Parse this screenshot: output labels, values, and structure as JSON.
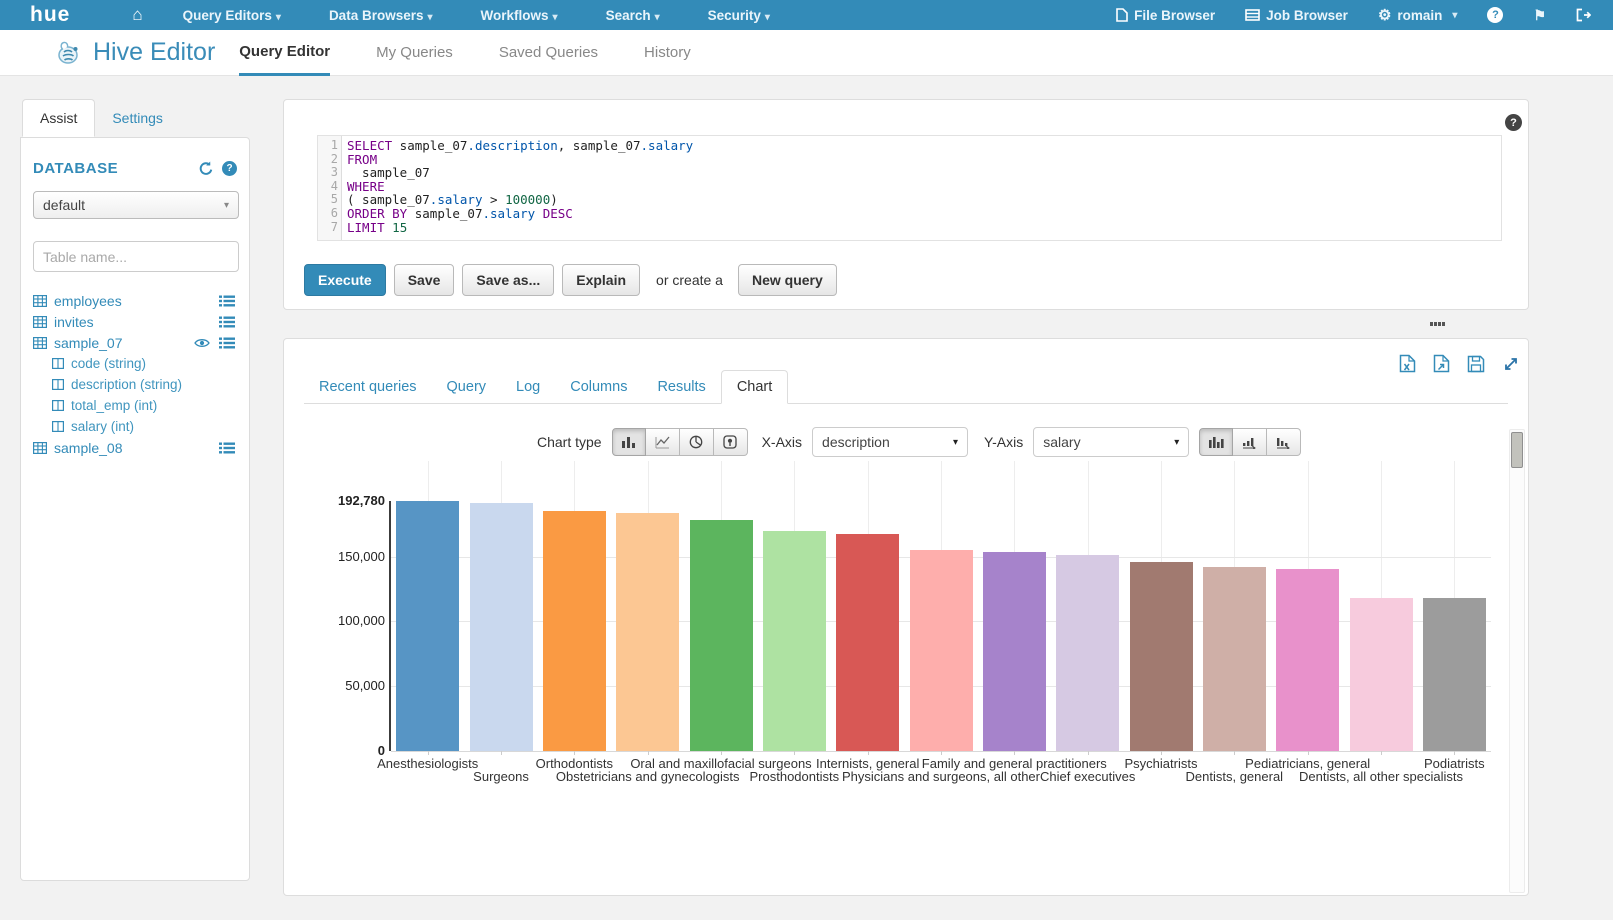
{
  "icons": {
    "home": "⌂",
    "caret_down": "▾",
    "gear": "⚙",
    "flag": "⚑",
    "help": "?"
  },
  "navbar": {
    "logo_text": "hue",
    "menus": [
      "Query Editors",
      "Data Browsers",
      "Workflows",
      "Search",
      "Security"
    ],
    "file_browser": "File Browser",
    "job_browser": "Job Browser",
    "username": "romain"
  },
  "subheader": {
    "app_title": "Hive Editor",
    "tabs": [
      "Query Editor",
      "My Queries",
      "Saved Queries",
      "History"
    ],
    "active_tab": "Query Editor"
  },
  "sidebar": {
    "tabs": [
      "Assist",
      "Settings"
    ],
    "active_tab": "Assist",
    "database_label": "DATABASE",
    "database_value": "default",
    "table_filter_placeholder": "Table name...",
    "tables": [
      {
        "name": "employees",
        "has_menu": true,
        "has_eye": false,
        "columns": []
      },
      {
        "name": "invites",
        "has_menu": true,
        "has_eye": false,
        "columns": []
      },
      {
        "name": "sample_07",
        "has_menu": true,
        "has_eye": true,
        "columns": [
          "code (string)",
          "description (string)",
          "total_emp (int)",
          "salary (int)"
        ]
      },
      {
        "name": "sample_08",
        "has_menu": true,
        "has_eye": false,
        "columns": []
      }
    ]
  },
  "editor": {
    "sql_lines": [
      [
        {
          "t": "kw",
          "v": "SELECT"
        },
        {
          "t": "pl",
          "v": " sample_07"
        },
        {
          "t": "fd",
          "v": ".description"
        },
        {
          "t": "pl",
          "v": ", sample_07"
        },
        {
          "t": "fd",
          "v": ".salary"
        }
      ],
      [
        {
          "t": "kw",
          "v": "FROM"
        }
      ],
      [
        {
          "t": "pl",
          "v": "  sample_07"
        }
      ],
      [
        {
          "t": "kw",
          "v": "WHERE"
        }
      ],
      [
        {
          "t": "pl",
          "v": "( sample_07"
        },
        {
          "t": "fd",
          "v": ".salary"
        },
        {
          "t": "pl",
          "v": " > "
        },
        {
          "t": "nu",
          "v": "100000"
        },
        {
          "t": "pl",
          "v": ")"
        }
      ],
      [
        {
          "t": "kw",
          "v": "ORDER BY"
        },
        {
          "t": "pl",
          "v": " sample_07"
        },
        {
          "t": "fd",
          "v": ".salary"
        },
        {
          "t": "kw",
          "v": " DESC"
        }
      ],
      [
        {
          "t": "kw",
          "v": "LIMIT"
        },
        {
          "t": "nu",
          "v": " 15"
        }
      ]
    ],
    "buttons": {
      "execute": "Execute",
      "save": "Save",
      "save_as": "Save as...",
      "explain": "Explain",
      "or_text": "or create a",
      "new_query": "New query"
    }
  },
  "results": {
    "tabs": [
      "Recent queries",
      "Query",
      "Log",
      "Columns",
      "Results",
      "Chart"
    ],
    "active_tab": "Chart",
    "controls": {
      "chart_type_label": "Chart type",
      "x_axis_label": "X-Axis",
      "x_axis_value": "description",
      "y_axis_label": "Y-Axis",
      "y_axis_value": "salary"
    }
  },
  "chart_data": {
    "type": "bar",
    "title": "",
    "xlabel": "description",
    "ylabel": "salary",
    "ylim": [
      0,
      192780
    ],
    "grid": true,
    "legend": "none",
    "categories": [
      "Anesthesiologists",
      "Surgeons",
      "Orthodontists",
      "Obstetricians and gynecologists",
      "Oral and maxillofacial surgeons",
      "Prosthodontists",
      "Internists, general",
      "Physicians and surgeons, all other",
      "Family and general practitioners",
      "Chief executives",
      "Psychiatrists",
      "Dentists, general",
      "Pediatricians, general",
      "Dentists, all other specialists",
      "Podiatrists"
    ],
    "values": [
      192780,
      191410,
      185340,
      183600,
      178440,
      169360,
      167270,
      155150,
      153640,
      151370,
      146150,
      142070,
      140690,
      118400,
      118220
    ],
    "bar_colors": [
      "#5795c5",
      "#c9d8ee",
      "#fa9a43",
      "#fcc793",
      "#5cb55e",
      "#aee2a2",
      "#d85855",
      "#feaeac",
      "#a683cb",
      "#d6c9e3",
      "#a17a70",
      "#cfafa7",
      "#e891cb",
      "#f7cbdd",
      "#9c9c9c"
    ],
    "y_ticks": [
      {
        "label": "192,780",
        "value": 192780,
        "bold": true
      },
      {
        "label": "150,000",
        "value": 150000,
        "bold": false
      },
      {
        "label": "100,000",
        "value": 100000,
        "bold": false
      },
      {
        "label": "50,000",
        "value": 50000,
        "bold": false
      },
      {
        "label": "0",
        "value": 0,
        "bold": true
      }
    ]
  }
}
